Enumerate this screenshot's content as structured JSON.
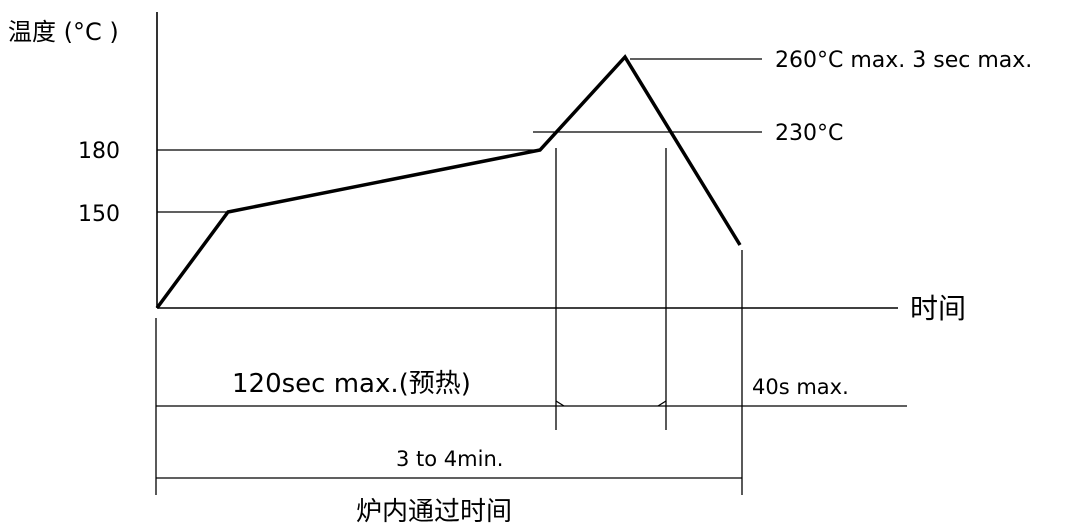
{
  "axes": {
    "y_label": "温度 (°C )",
    "x_label": "时间"
  },
  "tick_labels": {
    "t180": "180",
    "t150": "150"
  },
  "annotations": {
    "peak": "260°C max. 3 sec max.",
    "t230": "230°C"
  },
  "durations": {
    "preheat": "120sec max.(预热)",
    "above_230": "40s max.",
    "total": "3 to 4min.",
    "furnace_label": "炉内通过时间"
  },
  "profile_points_celsius": [
    {
      "stage": "start",
      "temp": null
    },
    {
      "stage": "preheat_start",
      "temp": 150
    },
    {
      "stage": "preheat_end",
      "temp": 180
    },
    {
      "stage": "peak",
      "temp": 260
    },
    {
      "stage": "end",
      "temp": null
    }
  ]
}
